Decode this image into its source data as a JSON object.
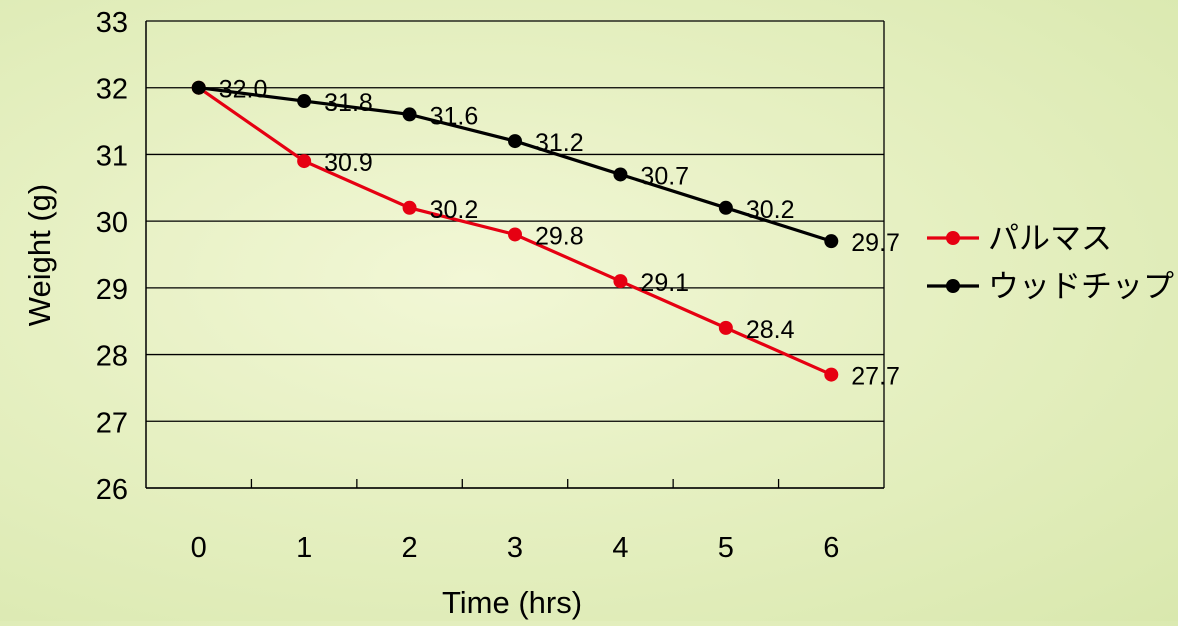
{
  "chart_data": {
    "type": "line",
    "title": "",
    "xlabel": "Time (hrs)",
    "ylabel": "Weight (g)",
    "x": [
      0,
      1,
      2,
      3,
      4,
      5,
      6
    ],
    "x_tick_labels": [
      "0",
      "1",
      "2",
      "3",
      "4",
      "5",
      "6"
    ],
    "ylim": [
      26,
      33
    ],
    "y_ticks": [
      26,
      27,
      28,
      29,
      30,
      31,
      32,
      33
    ],
    "y_tick_labels": [
      "26",
      "27",
      "28",
      "29",
      "30",
      "31",
      "32",
      "33"
    ],
    "grid": "horizontal",
    "legend_position": "right",
    "series": [
      {
        "name": "パルマス",
        "color": "#e60012",
        "values": [
          32.0,
          30.9,
          30.2,
          29.8,
          29.1,
          28.4,
          27.7
        ],
        "labels": [
          "",
          "30.9",
          "30.2",
          "29.8",
          "29.1",
          "28.4",
          "27.7"
        ]
      },
      {
        "name": "ウッドチップ",
        "color": "#000000",
        "values": [
          32.0,
          31.8,
          31.6,
          31.2,
          30.7,
          30.2,
          29.7
        ],
        "labels": [
          "32.0",
          "31.8",
          "31.6",
          "31.2",
          "30.7",
          "30.2",
          "29.7"
        ]
      }
    ]
  }
}
